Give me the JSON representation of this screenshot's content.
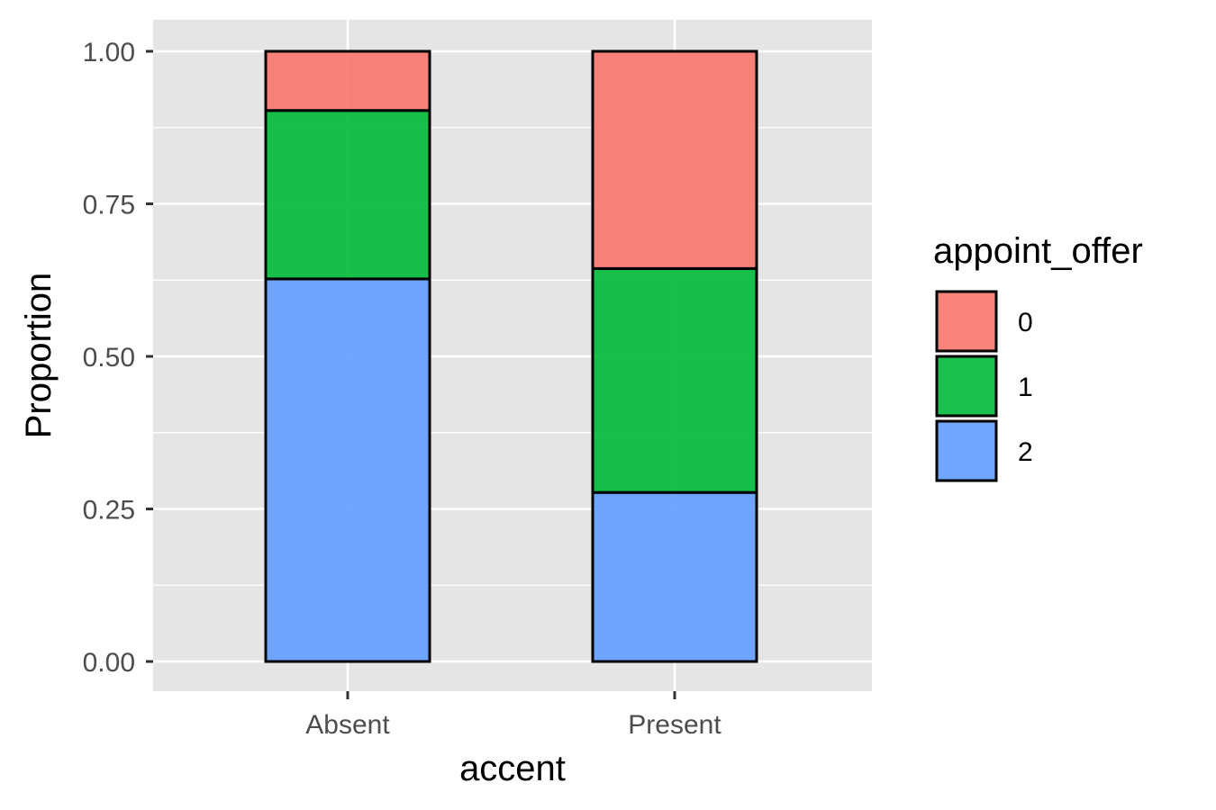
{
  "chart_data": {
    "type": "bar",
    "stacked": true,
    "title": "",
    "xlabel": "accent",
    "ylabel": "Proportion",
    "categories": [
      "Absent",
      "Present"
    ],
    "ylim": [
      0,
      1
    ],
    "yticks": [
      "0.00",
      "0.25",
      "0.50",
      "0.75",
      "1.00"
    ],
    "legend_title": "appoint_offer",
    "legend_position": "right",
    "series": [
      {
        "name": "0",
        "color": "#F8766D",
        "values": [
          0.097,
          0.356
        ]
      },
      {
        "name": "1",
        "color": "#00BA38",
        "values": [
          0.276,
          0.367
        ]
      },
      {
        "name": "2",
        "color": "#619CFF",
        "values": [
          0.627,
          0.277
        ]
      }
    ],
    "panel_background": "#e5e5e5",
    "grid_color": "#ffffff"
  }
}
